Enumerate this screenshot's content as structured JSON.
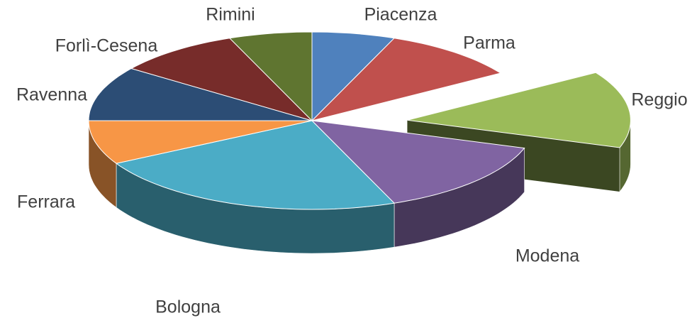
{
  "chart_data": {
    "type": "pie",
    "categories": [
      "Piacenza",
      "Parma",
      "Reggio",
      "Modena",
      "Bologna",
      "Ferrara",
      "Ravenna",
      "Forlì-Cesena",
      "Rimini"
    ],
    "values": [
      6,
      10,
      14,
      14,
      23,
      8,
      10,
      9,
      6
    ],
    "colors": [
      "#4f81bd",
      "#c0504d",
      "#9bbb59",
      "#8064a2",
      "#4bacc6",
      "#f79646",
      "#2c4d75",
      "#772c2a",
      "#5f7530"
    ]
  }
}
